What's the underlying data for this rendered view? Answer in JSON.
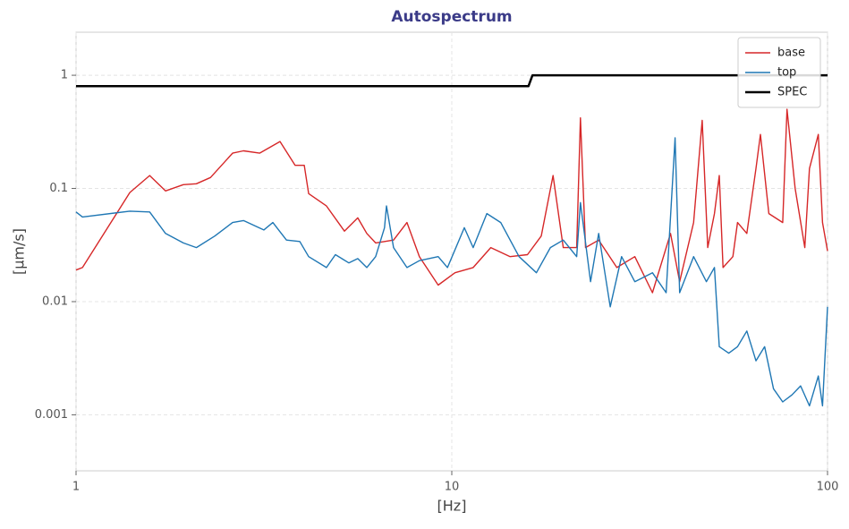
{
  "chart_data": {
    "type": "line",
    "title": "Autospectrum",
    "xlabel": "[Hz]",
    "ylabel": "[µm/s]",
    "xscale": "log",
    "yscale": "log",
    "grid": true,
    "legend": "upper right",
    "xlim": [
      1,
      100
    ],
    "xticks": [
      1,
      10,
      100
    ],
    "ylim": [
      0.00032,
      2.4
    ],
    "yticks": [
      0.001,
      0.01,
      0.1,
      1
    ],
    "series": [
      {
        "name": "base",
        "color": "#d62728",
        "width": 1.4,
        "x": [
          1,
          1.04,
          1.39,
          1.57,
          1.73,
          1.93,
          2.09,
          2.28,
          2.61,
          2.79,
          3.08,
          3.49,
          3.83,
          4.05,
          4.16,
          4.64,
          5.18,
          5.62,
          5.94,
          6.27,
          7.0,
          7.6,
          8.2,
          9.2,
          10.2,
          11.4,
          12.7,
          14.3,
          15.9,
          17.3,
          18.6,
          19.8,
          21.5,
          22,
          22.7,
          24.6,
          27.5,
          30.7,
          34.2,
          38.2,
          40.4,
          44,
          46.4,
          48,
          50,
          51.5,
          52.7,
          56,
          57.6,
          61,
          64.5,
          66.3,
          69.8,
          76,
          78,
          82,
          87,
          89.5,
          94.5,
          97,
          100
        ],
        "values": [
          0.019,
          0.02,
          0.092,
          0.13,
          0.095,
          0.108,
          0.11,
          0.125,
          0.205,
          0.215,
          0.205,
          0.26,
          0.16,
          0.16,
          0.09,
          0.07,
          0.042,
          0.055,
          0.04,
          0.033,
          0.035,
          0.05,
          0.025,
          0.014,
          0.018,
          0.02,
          0.03,
          0.025,
          0.026,
          0.038,
          0.13,
          0.03,
          0.03,
          0.42,
          0.03,
          0.035,
          0.02,
          0.025,
          0.012,
          0.04,
          0.015,
          0.05,
          0.4,
          0.03,
          0.06,
          0.13,
          0.02,
          0.025,
          0.05,
          0.04,
          0.15,
          0.3,
          0.06,
          0.05,
          0.5,
          0.1,
          0.03,
          0.15,
          0.3,
          0.05,
          0.028
        ]
      },
      {
        "name": "top",
        "color": "#1f77b4",
        "width": 1.4,
        "x": [
          1,
          1.04,
          1.39,
          1.57,
          1.73,
          1.93,
          2.09,
          2.34,
          2.61,
          2.79,
          3.16,
          3.34,
          3.63,
          3.94,
          4.16,
          4.64,
          4.9,
          5.32,
          5.62,
          5.94,
          6.27,
          6.62,
          6.7,
          7.0,
          7.6,
          8.2,
          9.2,
          9.74,
          10.8,
          11.4,
          12.4,
          13.5,
          15.1,
          16.8,
          18.3,
          19.8,
          21.5,
          22,
          23.4,
          24.6,
          26.4,
          28.3,
          30.7,
          34.2,
          37.2,
          39.3,
          40.4,
          44,
          47.6,
          50,
          51.5,
          54.6,
          57.6,
          61,
          64.5,
          68,
          71.8,
          76,
          80.4,
          84.8,
          89.5,
          94.5,
          97,
          100
        ],
        "values": [
          0.062,
          0.056,
          0.063,
          0.062,
          0.04,
          0.033,
          0.03,
          0.038,
          0.05,
          0.052,
          0.043,
          0.05,
          0.035,
          0.034,
          0.025,
          0.02,
          0.026,
          0.022,
          0.024,
          0.02,
          0.025,
          0.045,
          0.07,
          0.03,
          0.02,
          0.023,
          0.025,
          0.02,
          0.045,
          0.03,
          0.06,
          0.05,
          0.025,
          0.018,
          0.03,
          0.035,
          0.025,
          0.075,
          0.015,
          0.04,
          0.009,
          0.025,
          0.015,
          0.018,
          0.012,
          0.28,
          0.012,
          0.025,
          0.015,
          0.02,
          0.004,
          0.0035,
          0.004,
          0.0055,
          0.003,
          0.004,
          0.0017,
          0.0013,
          0.0015,
          0.0018,
          0.0012,
          0.0022,
          0.0012,
          0.009
        ]
      },
      {
        "name": "SPEC",
        "color": "#000000",
        "width": 2.5,
        "x": [
          1,
          16,
          16.4,
          100
        ],
        "values": [
          0.8,
          0.8,
          1,
          1
        ]
      }
    ]
  }
}
